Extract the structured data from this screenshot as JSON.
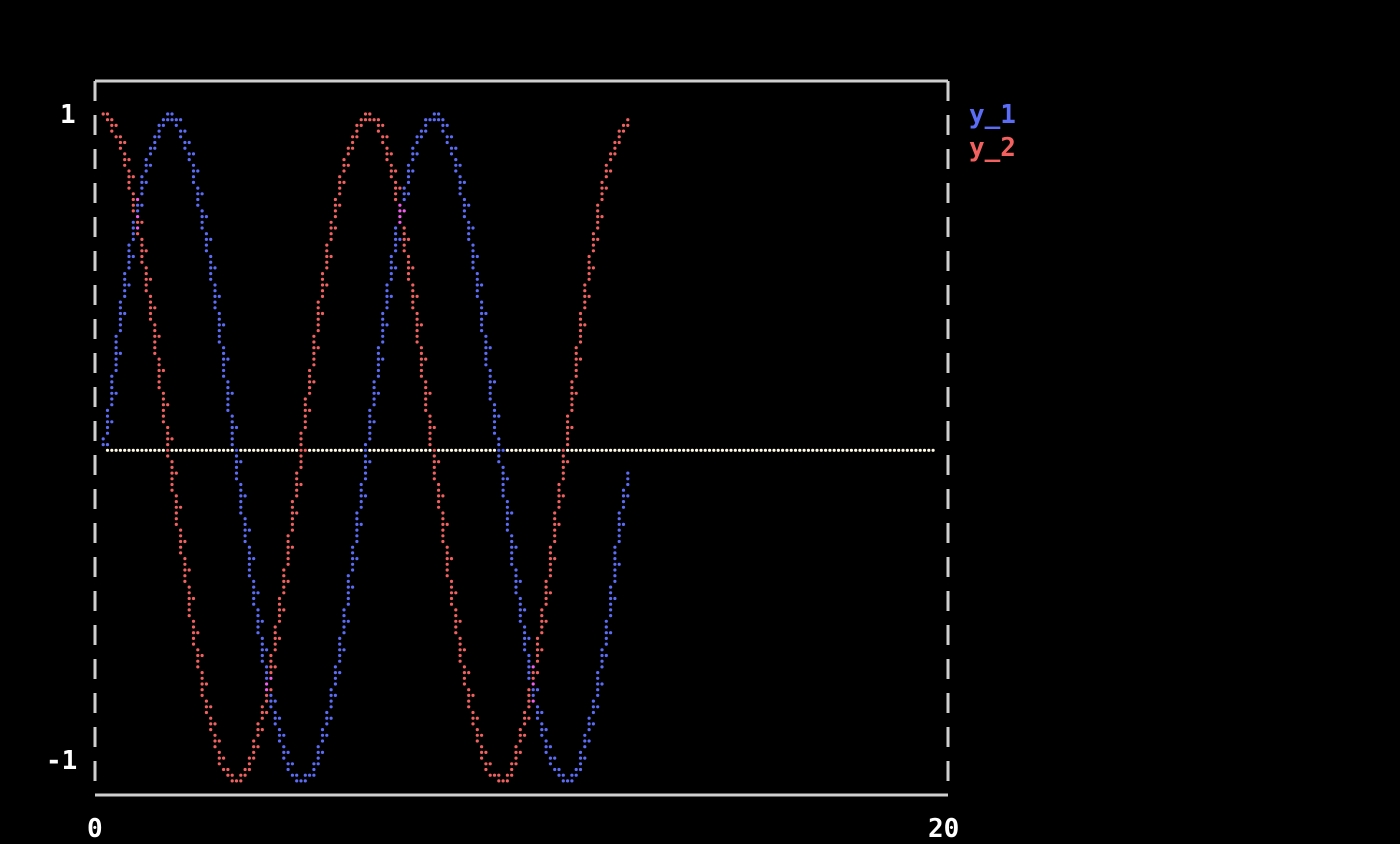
{
  "chart_data": {
    "type": "line",
    "title": "",
    "xlabel": "",
    "ylabel": "",
    "xlim": [
      0,
      20
    ],
    "ylim": [
      -1,
      1
    ],
    "x_tick_labels": [
      "0",
      "20"
    ],
    "y_tick_labels": [
      "1",
      "-1"
    ],
    "legend_placement": "right",
    "grid": false,
    "x": [
      0,
      0.5,
      1,
      1.5,
      2,
      2.5,
      3,
      3.5,
      4,
      4.5,
      5,
      5.5,
      6,
      6.5,
      7,
      7.5,
      8,
      8.5,
      9,
      9.5,
      10,
      10.5,
      11,
      11.5,
      12,
      12.5
    ],
    "series": [
      {
        "name": "y_1",
        "color": "#5b6cf7",
        "values": [
          0,
          0.479,
          0.841,
          0.997,
          0.909,
          0.598,
          0.141,
          -0.351,
          -0.757,
          -0.978,
          -0.959,
          -0.706,
          -0.279,
          0.215,
          0.657,
          0.938,
          0.989,
          0.798,
          0.412,
          -0.075,
          -0.544,
          -0.88,
          -1.0,
          -0.875,
          -0.537,
          -0.066
        ]
      },
      {
        "name": "y_2",
        "color": "#f2615f",
        "values": [
          1,
          0.878,
          0.54,
          0.071,
          -0.416,
          -0.801,
          -0.99,
          -0.936,
          -0.654,
          -0.211,
          0.284,
          0.709,
          0.96,
          0.977,
          0.754,
          0.347,
          -0.146,
          -0.602,
          -0.911,
          -0.997,
          -0.839,
          -0.476,
          0.004,
          0.483,
          0.844,
          0.998
        ]
      }
    ],
    "reference_line": {
      "y": 0,
      "x_range": [
        0,
        20
      ],
      "color": "#fffbe6"
    },
    "overlap_color": "#f55cf0",
    "axis_color": "#cfcfcf"
  }
}
